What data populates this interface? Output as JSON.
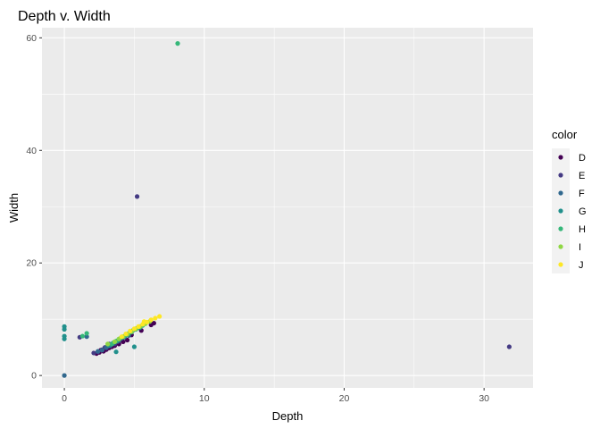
{
  "chart_data": {
    "type": "scatter",
    "title": "Depth v. Width",
    "xlabel": "Depth",
    "ylabel": "Width",
    "xlim": [
      -1.6,
      33.5
    ],
    "ylim": [
      -2.2,
      61.8
    ],
    "x_ticks": [
      0,
      10,
      20,
      30
    ],
    "y_ticks": [
      0,
      20,
      40,
      60
    ],
    "grid": true,
    "legend": {
      "title": "color",
      "position": "right",
      "entries": [
        {
          "name": "D",
          "color": "#440154"
        },
        {
          "name": "E",
          "color": "#443A83"
        },
        {
          "name": "F",
          "color": "#31688E"
        },
        {
          "name": "G",
          "color": "#21908C"
        },
        {
          "name": "H",
          "color": "#35B779"
        },
        {
          "name": "I",
          "color": "#8FD744"
        },
        {
          "name": "J",
          "color": "#FDE725"
        }
      ]
    },
    "series": [
      {
        "name": "D",
        "points": [
          [
            2.3,
            3.9
          ],
          [
            2.5,
            4.1
          ],
          [
            2.8,
            4.3
          ],
          [
            3.0,
            4.6
          ],
          [
            3.2,
            4.9
          ],
          [
            3.4,
            5.1
          ],
          [
            3.6,
            5.3
          ],
          [
            3.9,
            5.6
          ],
          [
            4.2,
            6.0
          ],
          [
            4.5,
            6.3
          ],
          [
            2.6,
            4.5
          ],
          [
            3.1,
            5.2
          ],
          [
            3.5,
            5.7
          ],
          [
            4.0,
            6.5
          ],
          [
            4.8,
            7.2
          ],
          [
            5.5,
            8.0
          ],
          [
            6.2,
            9.0
          ],
          [
            6.4,
            9.3
          ]
        ]
      },
      {
        "name": "E",
        "points": [
          [
            2.1,
            4.0
          ],
          [
            2.4,
            4.2
          ],
          [
            2.7,
            4.6
          ],
          [
            3.0,
            4.9
          ],
          [
            3.3,
            5.3
          ],
          [
            3.6,
            5.6
          ],
          [
            2.9,
            5.0
          ],
          [
            3.2,
            5.6
          ],
          [
            3.8,
            6.0
          ],
          [
            4.1,
            6.6
          ],
          [
            1.1,
            6.8
          ],
          [
            5.2,
            31.8
          ],
          [
            31.8,
            5.1
          ]
        ]
      },
      {
        "name": "F",
        "points": [
          [
            2.4,
            4.3
          ],
          [
            2.7,
            4.5
          ],
          [
            3.0,
            5.0
          ],
          [
            3.3,
            5.4
          ],
          [
            3.6,
            5.9
          ],
          [
            3.9,
            6.2
          ],
          [
            4.3,
            6.8
          ],
          [
            4.6,
            7.1
          ],
          [
            1.6,
            6.9
          ],
          [
            0.0,
            0.0
          ]
        ]
      },
      {
        "name": "G",
        "points": [
          [
            0.0,
            8.7
          ],
          [
            0.0,
            8.2
          ],
          [
            0.0,
            7.0
          ],
          [
            0.0,
            6.5
          ],
          [
            3.2,
            5.3
          ],
          [
            3.5,
            5.8
          ],
          [
            3.8,
            6.2
          ],
          [
            4.1,
            6.7
          ],
          [
            4.4,
            7.2
          ],
          [
            4.8,
            7.7
          ],
          [
            5.1,
            8.2
          ],
          [
            5.4,
            8.5
          ],
          [
            5.0,
            5.1
          ],
          [
            3.7,
            4.2
          ]
        ]
      },
      {
        "name": "H",
        "points": [
          [
            1.3,
            7.0
          ],
          [
            1.6,
            7.5
          ],
          [
            3.4,
            5.6
          ],
          [
            3.7,
            6.1
          ],
          [
            4.0,
            6.6
          ],
          [
            4.3,
            7.0
          ],
          [
            4.6,
            7.5
          ],
          [
            4.9,
            8.0
          ],
          [
            5.2,
            8.4
          ],
          [
            5.6,
            8.9
          ],
          [
            8.1,
            59.0
          ]
        ]
      },
      {
        "name": "I",
        "points": [
          [
            3.6,
            6.0
          ],
          [
            3.9,
            6.5
          ],
          [
            4.2,
            6.9
          ],
          [
            4.5,
            7.3
          ],
          [
            4.8,
            7.8
          ],
          [
            5.1,
            8.3
          ],
          [
            5.4,
            8.7
          ],
          [
            5.8,
            9.2
          ],
          [
            6.1,
            9.6
          ],
          [
            3.1,
            5.6
          ]
        ]
      },
      {
        "name": "J",
        "points": [
          [
            4.1,
            6.9
          ],
          [
            4.4,
            7.4
          ],
          [
            4.7,
            7.9
          ],
          [
            5.0,
            8.3
          ],
          [
            5.3,
            8.7
          ],
          [
            5.6,
            9.1
          ],
          [
            5.9,
            9.5
          ],
          [
            6.2,
            9.9
          ],
          [
            6.5,
            10.2
          ],
          [
            6.8,
            10.5
          ],
          [
            5.7,
            9.6
          ]
        ]
      }
    ]
  }
}
